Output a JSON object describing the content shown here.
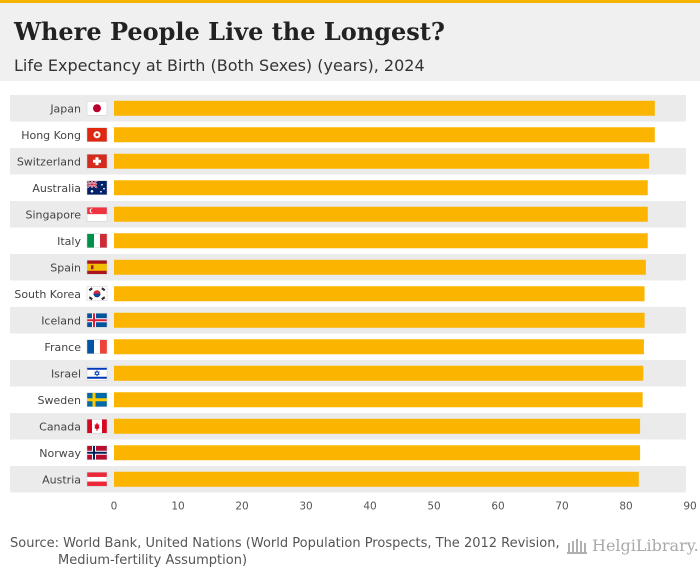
{
  "title": "Where People Live the Longest?",
  "subtitle": "Life Expectancy at Birth (Both Sexes) (years), 2024",
  "source": "Source: World Bank, United Nations (World Population Prospects, The 2012 Revision, Medium-fertility Assumption)",
  "logo_text": "HelgiLibrary.",
  "colors": {
    "bar": "#fbb500",
    "band": "#ebebeb",
    "header": "#f0f0f0",
    "accent": "#f6b400"
  },
  "chart_data": {
    "type": "bar",
    "orientation": "horizontal",
    "categories": [
      "Japan",
      "Hong Kong",
      "Switzerland",
      "Australia",
      "Singapore",
      "Italy",
      "Spain",
      "South Korea",
      "Iceland",
      "France",
      "Israel",
      "Sweden",
      "Canada",
      "Norway",
      "Austria"
    ],
    "flags": [
      "japan-flag-icon",
      "hong-kong-flag-icon",
      "switzerland-flag-icon",
      "australia-flag-icon",
      "singapore-flag-icon",
      "italy-flag-icon",
      "spain-flag-icon",
      "south-korea-flag-icon",
      "iceland-flag-icon",
      "france-flag-icon",
      "israel-flag-icon",
      "sweden-flag-icon",
      "canada-flag-icon",
      "norway-flag-icon",
      "austria-flag-icon"
    ],
    "values": [
      84.5,
      84.5,
      83.6,
      83.4,
      83.4,
      83.4,
      83.1,
      82.9,
      82.9,
      82.8,
      82.7,
      82.6,
      82.2,
      82.2,
      82.0
    ],
    "xlim": [
      0,
      90
    ],
    "xticks": [
      0,
      10,
      20,
      30,
      40,
      50,
      60,
      70,
      80,
      90
    ],
    "grid": false,
    "alternating_row_bands": true
  }
}
